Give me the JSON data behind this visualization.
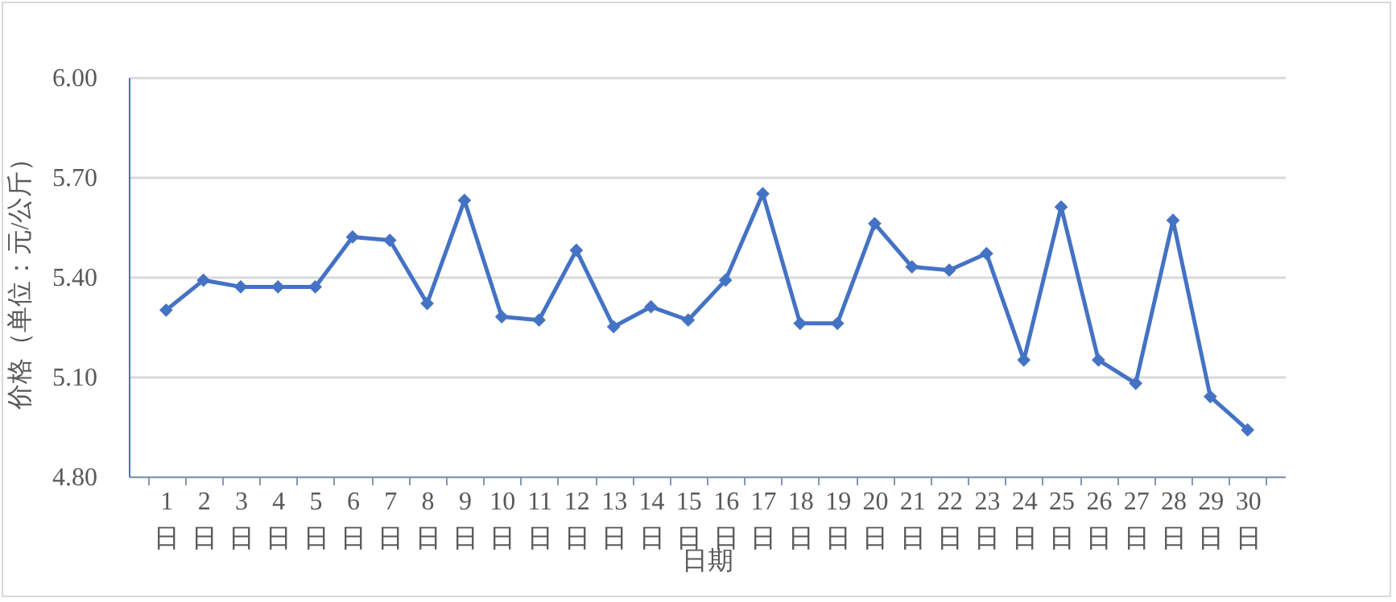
{
  "chart_data": {
    "type": "line",
    "xlabel": "日期",
    "ylabel": "价格（单位：元/公斤）",
    "categories": [
      "1日",
      "2日",
      "3日",
      "4日",
      "5日",
      "6日",
      "7日",
      "8日",
      "9日",
      "10日",
      "11日",
      "12日",
      "13日",
      "14日",
      "15日",
      "16日",
      "17日",
      "18日",
      "19日",
      "20日",
      "21日",
      "22日",
      "23日",
      "24日",
      "25日",
      "26日",
      "27日",
      "28日",
      "29日",
      "30日"
    ],
    "series": [
      {
        "color": "#4472c4",
        "values": [
          5.3,
          5.39,
          5.37,
          5.37,
          5.37,
          5.52,
          5.51,
          5.32,
          5.63,
          5.28,
          5.27,
          5.48,
          5.25,
          5.31,
          5.27,
          5.39,
          5.65,
          5.26,
          5.26,
          5.56,
          5.43,
          5.42,
          5.47,
          5.15,
          5.61,
          5.15,
          5.08,
          5.57,
          5.04,
          4.94
        ]
      }
    ],
    "ylim": [
      4.8,
      6.0
    ],
    "yticks": [
      {
        "value": 4.8,
        "label": "4.80"
      },
      {
        "value": 5.1,
        "label": "5.10"
      },
      {
        "value": 5.4,
        "label": "5.40"
      },
      {
        "value": 5.7,
        "label": "5.70"
      },
      {
        "value": 6.0,
        "label": "6.00"
      }
    ],
    "grid": "y",
    "marker": "diamond",
    "line_style": "solid"
  }
}
